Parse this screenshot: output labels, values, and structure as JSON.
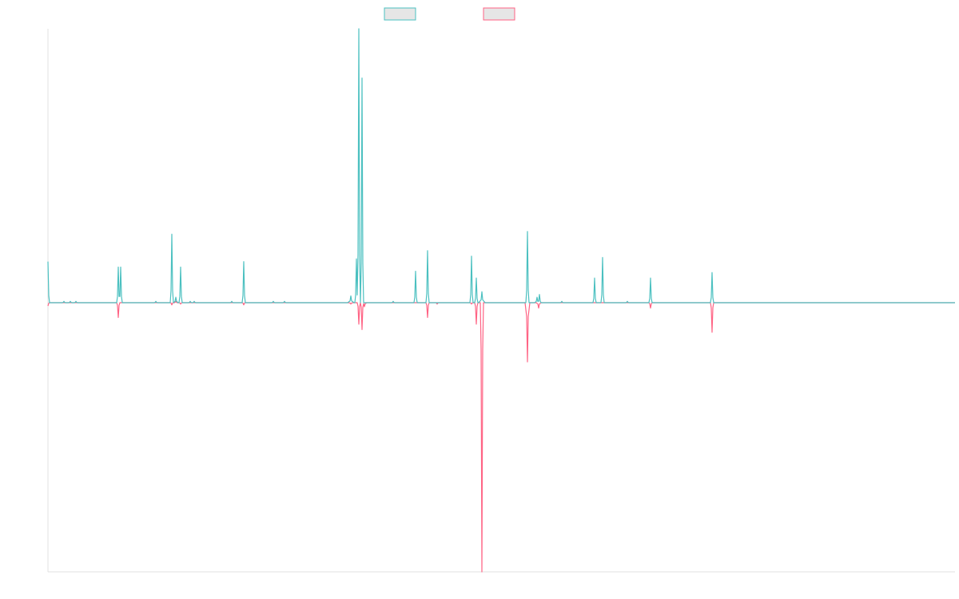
{
  "chart_data": {
    "type": "line",
    "title": "",
    "xlabel": "",
    "ylabel": "",
    "legend": {
      "position": "top-center"
    },
    "grid": false,
    "ylim": [
      -1.0,
      1.0
    ],
    "colors": {
      "series_0": "#4bc0c0",
      "series_1": "#ff6384",
      "legend_fill": "#e6e6e6",
      "axis": "#e0e0e0"
    },
    "x": [
      0,
      1,
      2,
      3,
      4,
      5,
      6,
      7,
      8,
      9,
      10,
      11,
      12,
      13,
      14,
      15,
      16,
      17,
      18,
      19,
      20,
      21,
      22,
      23,
      24,
      25,
      26,
      27,
      28,
      29,
      30,
      31,
      32,
      33,
      34,
      35,
      36,
      37,
      38,
      39,
      40,
      41,
      42,
      43,
      44,
      45,
      46,
      47,
      48,
      49,
      50,
      51,
      52,
      53,
      54,
      55,
      56,
      57,
      58,
      59,
      60,
      61,
      62,
      63,
      64,
      65,
      66,
      67,
      68,
      69,
      70,
      71,
      72,
      73,
      74,
      75,
      76,
      77,
      78,
      79,
      80,
      81,
      82,
      83,
      84,
      85,
      86,
      87,
      88,
      89,
      90,
      91,
      92,
      93,
      94,
      95,
      96,
      97,
      98,
      99,
      100,
      101,
      102,
      103,
      104,
      105,
      106,
      107,
      108,
      109,
      110,
      111,
      112,
      113,
      114,
      115,
      116,
      117,
      118,
      119,
      120,
      121,
      122,
      123,
      124,
      125,
      126,
      127,
      128,
      129,
      130,
      131,
      132,
      133,
      134,
      135,
      136,
      137,
      138,
      139,
      140,
      141,
      142,
      143,
      144,
      145,
      146,
      147,
      148,
      149,
      150,
      151,
      152,
      153,
      154,
      155,
      156,
      157,
      158,
      159,
      160,
      161,
      162,
      163,
      164,
      165,
      166,
      167,
      168,
      169,
      170,
      171,
      172,
      173,
      174,
      175,
      176,
      177,
      178,
      179,
      180,
      181,
      182,
      183,
      184,
      185,
      186,
      187,
      188,
      189,
      190,
      191,
      192,
      193,
      194,
      195,
      196,
      197,
      198,
      199,
      200,
      201,
      202,
      203,
      204,
      205,
      206,
      207,
      208,
      209,
      210,
      211,
      212,
      213,
      214,
      215,
      216,
      217,
      218,
      219,
      220,
      221,
      222,
      223,
      224,
      225,
      226,
      227,
      228,
      229,
      230,
      231,
      232,
      233,
      234,
      235,
      236,
      237,
      238,
      239,
      240,
      241,
      242,
      243,
      244,
      245,
      246,
      247,
      248,
      249,
      250,
      251,
      252,
      253,
      254,
      255,
      256,
      257,
      258,
      259,
      260,
      261,
      262,
      263,
      264,
      265,
      266,
      267,
      268,
      269,
      270,
      271,
      272,
      273,
      274,
      275,
      276,
      277,
      278,
      279,
      280,
      281,
      282,
      283,
      284,
      285,
      286,
      287,
      288,
      289,
      290,
      291,
      292,
      293,
      294,
      295,
      296,
      297,
      298,
      299,
      300,
      301,
      302,
      303,
      304,
      305,
      306,
      307,
      308,
      309,
      310,
      311,
      312,
      313,
      314,
      315,
      316,
      317,
      318,
      319,
      320,
      321,
      322,
      323,
      324,
      325,
      326,
      327,
      328,
      329,
      330,
      331,
      332,
      333,
      334,
      335,
      336,
      337,
      338,
      339,
      340,
      341,
      342,
      343,
      344,
      345,
      346,
      347,
      348,
      349,
      350,
      351,
      352,
      353,
      354,
      355,
      356,
      357,
      358,
      359,
      360,
      361,
      362,
      363,
      364,
      365,
      366,
      367,
      368,
      369,
      370,
      371,
      372,
      373,
      374,
      375,
      376,
      377,
      378,
      379,
      380,
      381,
      382,
      383,
      384,
      385,
      386,
      387,
      388,
      389,
      390,
      391,
      392,
      393,
      394,
      395,
      396,
      397,
      398,
      399,
      400,
      401,
      402,
      403,
      404,
      405,
      406,
      407,
      408,
      409,
      410,
      411,
      412,
      413,
      414,
      415,
      416,
      417,
      418,
      419,
      420,
      421,
      422,
      423,
      424,
      425,
      426,
      427,
      428,
      429,
      430,
      431,
      432,
      433,
      434,
      435,
      436,
      437,
      438,
      439,
      440,
      441,
      442,
      443,
      444,
      445,
      446,
      447,
      448,
      449,
      450,
      451,
      452,
      453,
      454,
      455,
      456,
      457,
      458,
      459,
      460,
      461,
      462,
      463,
      464,
      465,
      466,
      467,
      468,
      469,
      470,
      471,
      472,
      473,
      474,
      475,
      476,
      477,
      478,
      479,
      480,
      481,
      482,
      483,
      484,
      485,
      486,
      487,
      488,
      489,
      490,
      491,
      492,
      493,
      494,
      495,
      496,
      497,
      498,
      499,
      500,
      501,
      502,
      503,
      504,
      505,
      506,
      507,
      508,
      509,
      510,
      511,
      512,
      513,
      514,
      515,
      516,
      517,
      518,
      519,
      520,
      521,
      522,
      523,
      524,
      525,
      526,
      527,
      528,
      529,
      530,
      531,
      532,
      533,
      534,
      535,
      536,
      537,
      538,
      539,
      540,
      541,
      542,
      543,
      544,
      545,
      546,
      547,
      548,
      549,
      550,
      551,
      552,
      553,
      554,
      555,
      556,
      557,
      558,
      559,
      560,
      561,
      562,
      563,
      564,
      565,
      566,
      567,
      568,
      569,
      570,
      571,
      572,
      573,
      574,
      575,
      576,
      577,
      578,
      579,
      580,
      581,
      582,
      583,
      584,
      585,
      586,
      587,
      588,
      589,
      590,
      591,
      592,
      593,
      594,
      595,
      596,
      597,
      598,
      599,
      600,
      601,
      602,
      603,
      604,
      605,
      606,
      607,
      608,
      609,
      610,
      611,
      612,
      613,
      614,
      615,
      616,
      617,
      618,
      619,
      620,
      621,
      622,
      623,
      624,
      625,
      626,
      627,
      628,
      629,
      630,
      631,
      632,
      633,
      634,
      635,
      636,
      637,
      638,
      639,
      640,
      641,
      642,
      643,
      644,
      645,
      646,
      647,
      648,
      649,
      650,
      651,
      652,
      653,
      654,
      655,
      656,
      657,
      658,
      659,
      660,
      661,
      662,
      663,
      664,
      665,
      666,
      667,
      668,
      669,
      670,
      671,
      672,
      673,
      674,
      675,
      676,
      677,
      678,
      679,
      680,
      681,
      682,
      683,
      684,
      685,
      686,
      687,
      688,
      689,
      690,
      691,
      692,
      693,
      694,
      695,
      696,
      697,
      698,
      699,
      700,
      701,
      702,
      703,
      704,
      705,
      706,
      707,
      708,
      709,
      710,
      711,
      712,
      713,
      714,
      715,
      716,
      717,
      718,
      719,
      720,
      721,
      722,
      723,
      724,
      725,
      726,
      727,
      728,
      729,
      730,
      731,
      732,
      733,
      734,
      735,
      736,
      737,
      738,
      739,
      740,
      741,
      742,
      743,
      744,
      745,
      746,
      747,
      748,
      749,
      750,
      751,
      752,
      753,
      754,
      755,
      756,
      757,
      758,
      759,
      760,
      761,
      762,
      763,
      764,
      765,
      766,
      767,
      768,
      769,
      770,
      771,
      772,
      773,
      774,
      775,
      776,
      777,
      778,
      779,
      780,
      781,
      782,
      783,
      784,
      785,
      786,
      787,
      788,
      789,
      790,
      791,
      792,
      793,
      794,
      795,
      796,
      797,
      798,
      799,
      800,
      801,
      802,
      803,
      804,
      805,
      806,
      807,
      808,
      809,
      810,
      811,
      812,
      813,
      814,
      815,
      816,
      817,
      818,
      819,
      820,
      821,
      822,
      823,
      824,
      825,
      826,
      827,
      828,
      829,
      830,
      831,
      832,
      833,
      834,
      835,
      836,
      837,
      838,
      839,
      840,
      841,
      842,
      843,
      844,
      845,
      846,
      847,
      848,
      849,
      850,
      851,
      852,
      853,
      854,
      855,
      856,
      857,
      858,
      859,
      860,
      861,
      862,
      863,
      864,
      865,
      866,
      867,
      868,
      869,
      870,
      871,
      872,
      873,
      874,
      875,
      876,
      877,
      878,
      879,
      880,
      881,
      882,
      883,
      884,
      885,
      886,
      887,
      888,
      889,
      890,
      891,
      892,
      893,
      894,
      895,
      896,
      897,
      898,
      899,
      900,
      901,
      902,
      903,
      904,
      905,
      906,
      907,
      908,
      909,
      910,
      911,
      912,
      913,
      914,
      915,
      916,
      917,
      918,
      919,
      920,
      921,
      922,
      923,
      924,
      925,
      926,
      927,
      928,
      929,
      930,
      931,
      932,
      933,
      934,
      935,
      936,
      937,
      938,
      939,
      940,
      941,
      942,
      943,
      944,
      945,
      946,
      947,
      948,
      949,
      950,
      951,
      952,
      953,
      954,
      955,
      956,
      957,
      958,
      959,
      960,
      961,
      962,
      963,
      964,
      965,
      966,
      967,
      968,
      969,
      970,
      971,
      972,
      973,
      974,
      975,
      976,
      977,
      978,
      979,
      980,
      981,
      982,
      983,
      984,
      985,
      986,
      987,
      988,
      989,
      990,
      991,
      992,
      993,
      994,
      995,
      996,
      997,
      998,
      999,
      1000,
      1001,
      1002,
      1003,
      1004,
      1005,
      1006,
      1007,
      1008,
      1009,
      1010,
      1011,
      1012,
      1013,
      1014,
      1015,
      1016,
      1017,
      1018,
      1019,
      1020,
      1021,
      1022,
      1023,
      1024,
      1025,
      1026,
      1027,
      1028,
      1029,
      1030,
      1031,
      1032,
      1033,
      1034,
      1035,
      1036,
      1037,
      1038,
      1039,
      1040,
      1041,
      1042,
      1043,
      1044,
      1045,
      1046,
      1047,
      1048,
      1049,
      1050,
      1051,
      1052,
      1053,
      1054,
      1055,
      1056,
      1057,
      1058,
      1059,
      1060,
      1061,
      1062,
      1063,
      1064,
      1065,
      1066,
      1067,
      1068,
      1069,
      1070,
      1071,
      1072,
      1073,
      1074,
      1075,
      1076,
      1077,
      1078,
      1079,
      1080,
      1081,
      1082,
      1083,
      1084,
      1085,
      1086,
      1087,
      1088,
      1089,
      1090,
      1091,
      1092,
      1093,
      1094,
      1095,
      1096,
      1097,
      1098,
      1099,
      1100,
      1101,
      1102,
      1103,
      1104,
      1105,
      1106,
      1107,
      1108,
      1109,
      1110,
      1111,
      1112,
      1113,
      1114,
      1115,
      1116,
      1117,
      1118,
      1119,
      1120,
      1121,
      1122,
      1123,
      1124,
      1125,
      1126,
      1127,
      1128,
      1129,
      1130,
      1131,
      1132,
      1133,
      1134,
      1135
    ],
    "series": [
      {
        "name": "",
        "peaks": [
          [
            0,
            0.15,
            1
          ],
          [
            20,
            0.005,
            1
          ],
          [
            28,
            0.005,
            1
          ],
          [
            35,
            0.005,
            1
          ],
          [
            88,
            0.13,
            1
          ],
          [
            91,
            0.13,
            1
          ],
          [
            135,
            0.005,
            1
          ],
          [
            155,
            0.25,
            1
          ],
          [
            160,
            0.02,
            2
          ],
          [
            166,
            0.13,
            1
          ],
          [
            178,
            0.005,
            1
          ],
          [
            183,
            0.005,
            1
          ],
          [
            230,
            0.005,
            1
          ],
          [
            245,
            0.15,
            1
          ],
          [
            282,
            0.005,
            1
          ],
          [
            296,
            0.005,
            1
          ],
          [
            379,
            0.025,
            3
          ],
          [
            386,
            0.16,
            1
          ],
          [
            389,
            1.0,
            1
          ],
          [
            393,
            0.82,
            1
          ],
          [
            432,
            0.005,
            1
          ],
          [
            460,
            0.115,
            1
          ],
          [
            475,
            0.19,
            1
          ],
          [
            530,
            0.17,
            1
          ],
          [
            536,
            0.09,
            1
          ],
          [
            543,
            0.04,
            3
          ],
          [
            600,
            0.26,
            1
          ],
          [
            612,
            0.02,
            2
          ],
          [
            615,
            0.03,
            1
          ],
          [
            643,
            0.005,
            1
          ],
          [
            684,
            0.09,
            1
          ],
          [
            694,
            0.165,
            1
          ],
          [
            725,
            0.005,
            1
          ],
          [
            754,
            0.09,
            1
          ],
          [
            831,
            0.11,
            1
          ]
        ]
      },
      {
        "name": "",
        "peaks": [
          [
            0,
            -0.012,
            1
          ],
          [
            88,
            -0.055,
            1
          ],
          [
            155,
            -0.008,
            1
          ],
          [
            160,
            0.005,
            1
          ],
          [
            166,
            -0.005,
            1
          ],
          [
            245,
            -0.008,
            1
          ],
          [
            379,
            -0.005,
            2
          ],
          [
            389,
            -0.08,
            1
          ],
          [
            393,
            -0.1,
            1
          ],
          [
            396,
            -0.015,
            2
          ],
          [
            475,
            -0.055,
            1
          ],
          [
            487,
            -0.005,
            1
          ],
          [
            530,
            -0.005,
            1
          ],
          [
            536,
            -0.08,
            1
          ],
          [
            543,
            -1.0,
            1
          ],
          [
            600,
            -0.22,
            2
          ],
          [
            614,
            -0.02,
            2
          ],
          [
            754,
            -0.02,
            1
          ],
          [
            831,
            -0.11,
            1
          ]
        ]
      }
    ]
  }
}
